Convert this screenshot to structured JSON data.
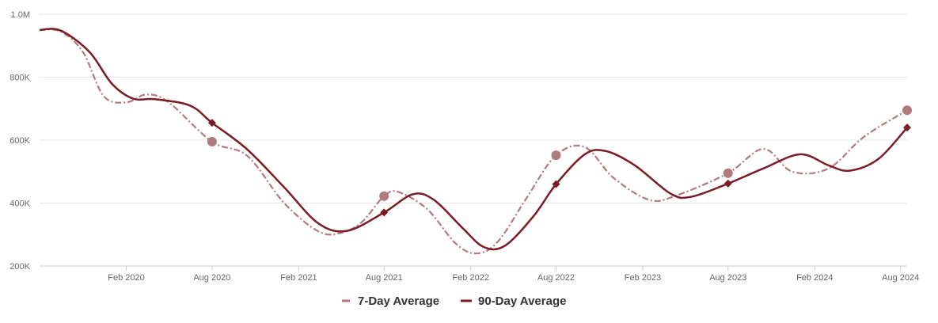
{
  "chart_data": {
    "type": "line",
    "title": "",
    "xlabel": "",
    "ylabel": "",
    "x_ticks": [
      "Feb 2020",
      "Aug 2020",
      "Feb 2021",
      "Aug 2021",
      "Feb 2022",
      "Aug 2022",
      "Feb 2023",
      "Aug 2023",
      "Feb 2024",
      "Aug 2024"
    ],
    "y_ticks": [
      "200K",
      "400K",
      "600K",
      "800K",
      "1.0M"
    ],
    "ylim": [
      200000,
      1000000
    ],
    "xlim": [
      "2019-08-01",
      "2024-08-15"
    ],
    "grid": "horizontal",
    "legend_position": "bottom-center",
    "series": [
      {
        "name": "7-Day Average",
        "color": "#b07a7e",
        "style": "dash-dot",
        "marker": "circle",
        "points": [
          [
            "2019-08-01",
            950000
          ],
          [
            "2019-09-15",
            945000
          ],
          [
            "2019-11-01",
            880000
          ],
          [
            "2019-12-15",
            740000
          ],
          [
            "2020-02-01",
            720000
          ],
          [
            "2020-03-15",
            745000
          ],
          [
            "2020-05-01",
            720000
          ],
          [
            "2020-08-01",
            595000
          ],
          [
            "2020-10-15",
            550000
          ],
          [
            "2021-01-01",
            400000
          ],
          [
            "2021-03-15",
            310000
          ],
          [
            "2021-05-01",
            305000
          ],
          [
            "2021-06-15",
            340000
          ],
          [
            "2021-08-01",
            422000
          ],
          [
            "2021-09-01",
            435000
          ],
          [
            "2021-11-01",
            380000
          ],
          [
            "2022-01-01",
            270000
          ],
          [
            "2022-02-15",
            240000
          ],
          [
            "2022-04-01",
            280000
          ],
          [
            "2022-06-01",
            420000
          ],
          [
            "2022-08-01",
            552000
          ],
          [
            "2022-10-01",
            578000
          ],
          [
            "2022-12-01",
            480000
          ],
          [
            "2023-02-15",
            410000
          ],
          [
            "2023-04-15",
            425000
          ],
          [
            "2023-08-01",
            495000
          ],
          [
            "2023-10-15",
            572000
          ],
          [
            "2023-12-15",
            500000
          ],
          [
            "2024-03-01",
            510000
          ],
          [
            "2024-05-15",
            610000
          ],
          [
            "2024-08-15",
            695000
          ]
        ],
        "markers": [
          [
            "2020-08-01",
            595000
          ],
          [
            "2021-08-01",
            422000
          ],
          [
            "2022-08-01",
            552000
          ],
          [
            "2023-08-01",
            495000
          ],
          [
            "2024-08-15",
            695000
          ]
        ]
      },
      {
        "name": "90-Day Average",
        "color": "#7a1c26",
        "style": "solid",
        "marker": "diamond",
        "points": [
          [
            "2019-08-01",
            950000
          ],
          [
            "2019-09-15",
            948000
          ],
          [
            "2019-11-15",
            880000
          ],
          [
            "2020-01-01",
            780000
          ],
          [
            "2020-02-15",
            732000
          ],
          [
            "2020-04-01",
            730000
          ],
          [
            "2020-06-15",
            710000
          ],
          [
            "2020-08-01",
            655000
          ],
          [
            "2020-10-15",
            570000
          ],
          [
            "2021-01-01",
            450000
          ],
          [
            "2021-03-15",
            335000
          ],
          [
            "2021-05-15",
            312000
          ],
          [
            "2021-08-01",
            370000
          ],
          [
            "2021-10-01",
            428000
          ],
          [
            "2021-11-15",
            410000
          ],
          [
            "2022-01-15",
            320000
          ],
          [
            "2022-03-01",
            260000
          ],
          [
            "2022-04-15",
            265000
          ],
          [
            "2022-06-15",
            360000
          ],
          [
            "2022-08-01",
            460000
          ],
          [
            "2022-10-01",
            555000
          ],
          [
            "2022-11-15",
            565000
          ],
          [
            "2023-01-15",
            520000
          ],
          [
            "2023-04-01",
            430000
          ],
          [
            "2023-05-15",
            420000
          ],
          [
            "2023-08-01",
            462000
          ],
          [
            "2023-10-15",
            510000
          ],
          [
            "2024-01-01",
            555000
          ],
          [
            "2024-03-01",
            520000
          ],
          [
            "2024-04-15",
            503000
          ],
          [
            "2024-06-15",
            540000
          ],
          [
            "2024-08-15",
            640000
          ]
        ],
        "markers": [
          [
            "2020-08-01",
            655000
          ],
          [
            "2021-08-01",
            370000
          ],
          [
            "2022-08-01",
            460000
          ],
          [
            "2023-08-01",
            462000
          ],
          [
            "2024-08-15",
            640000
          ]
        ]
      }
    ]
  }
}
